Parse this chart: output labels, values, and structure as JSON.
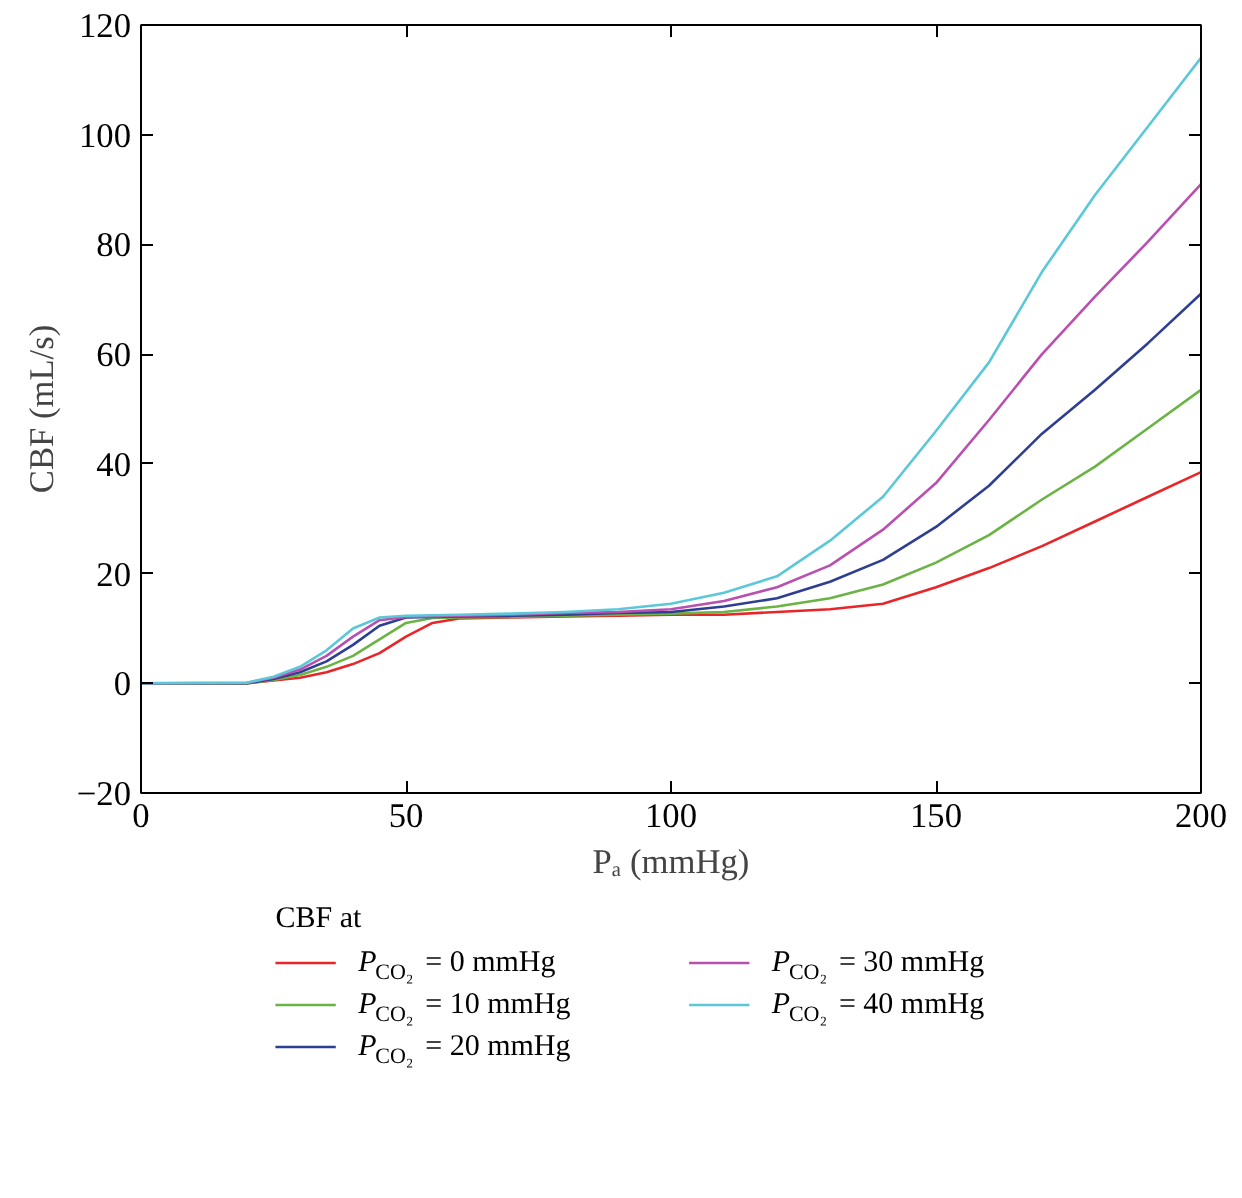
{
  "chart_data": {
    "type": "line",
    "xlabel": "Pₐ (mmHg)",
    "ylabel": "CBF (mL/s)",
    "legend_title": "CBF at",
    "xlim": [
      0,
      200
    ],
    "ylim": [
      -20,
      120
    ],
    "xticks": [
      0,
      50,
      100,
      150,
      200
    ],
    "yticks": [
      -20,
      0,
      20,
      40,
      60,
      80,
      100,
      120
    ],
    "grid": false,
    "legend": "bottom",
    "marker": "none",
    "line_style": "solid",
    "series": [
      {
        "name": "P$_{CO₂}$ = 0 mmHg",
        "color": "#e8262a",
        "x": [
          0,
          20,
          25,
          30,
          35,
          40,
          45,
          50,
          55,
          60,
          70,
          80,
          90,
          100,
          110,
          120,
          130,
          140,
          150,
          160,
          170,
          180,
          190,
          200
        ],
        "values": [
          0,
          0,
          0.5,
          1,
          2,
          3.5,
          5.5,
          8.5,
          11,
          11.8,
          12,
          12.2,
          12.3,
          12.5,
          12.5,
          13,
          13.5,
          14.5,
          17.5,
          21,
          25,
          29.5,
          34,
          38.5
        ]
      },
      {
        "name": "P$_{CO₂}$ = 10 mmHg",
        "color": "#6ab344",
        "x": [
          0,
          20,
          25,
          30,
          35,
          40,
          45,
          50,
          55,
          60,
          70,
          80,
          90,
          100,
          110,
          120,
          130,
          140,
          150,
          160,
          170,
          180,
          190,
          200
        ],
        "values": [
          0,
          0,
          0.6,
          1.5,
          3,
          5,
          8,
          11,
          11.9,
          12,
          12.1,
          12.3,
          12.5,
          12.7,
          13,
          14,
          15.5,
          18,
          22,
          27,
          33.5,
          39.5,
          46.5,
          53.5
        ]
      },
      {
        "name": "P$_{CO₂}$ = 20 mmHg",
        "color": "#2e3e93",
        "x": [
          0,
          20,
          25,
          30,
          35,
          40,
          45,
          50,
          55,
          60,
          70,
          80,
          90,
          100,
          110,
          120,
          130,
          140,
          150,
          160,
          170,
          180,
          190,
          200
        ],
        "values": [
          0,
          0,
          0.8,
          2,
          4,
          7,
          10.5,
          12,
          12.1,
          12.2,
          12.3,
          12.5,
          12.8,
          13,
          14,
          15.5,
          18.5,
          22.5,
          28.5,
          36,
          45.5,
          53.5,
          62,
          71
        ]
      },
      {
        "name": "P$_{CO₂}$ = 30 mmHg",
        "color": "#b94fb0",
        "x": [
          0,
          20,
          25,
          30,
          35,
          40,
          45,
          50,
          55,
          60,
          70,
          80,
          90,
          100,
          110,
          120,
          130,
          140,
          150,
          160,
          170,
          180,
          190,
          200
        ],
        "values": [
          0,
          0.1,
          1,
          2.5,
          5,
          8.5,
          11.5,
          12.1,
          12.2,
          12.3,
          12.5,
          12.8,
          13,
          13.5,
          15,
          17.5,
          21.5,
          28,
          36.5,
          48,
          60,
          70.5,
          80.5,
          91
        ]
      },
      {
        "name": "P$_{CO₂}$ = 40 mmHg",
        "color": "#5bc8d8",
        "x": [
          0,
          20,
          25,
          30,
          35,
          40,
          45,
          50,
          55,
          60,
          70,
          80,
          90,
          100,
          110,
          120,
          130,
          140,
          150,
          160,
          170,
          180,
          190,
          200
        ],
        "values": [
          0,
          0.1,
          1.2,
          3,
          6,
          10,
          12,
          12.3,
          12.4,
          12.5,
          12.7,
          13,
          13.5,
          14.5,
          16.5,
          19.5,
          26,
          34,
          46,
          58.5,
          75,
          89,
          101.5,
          114
        ]
      }
    ]
  }
}
